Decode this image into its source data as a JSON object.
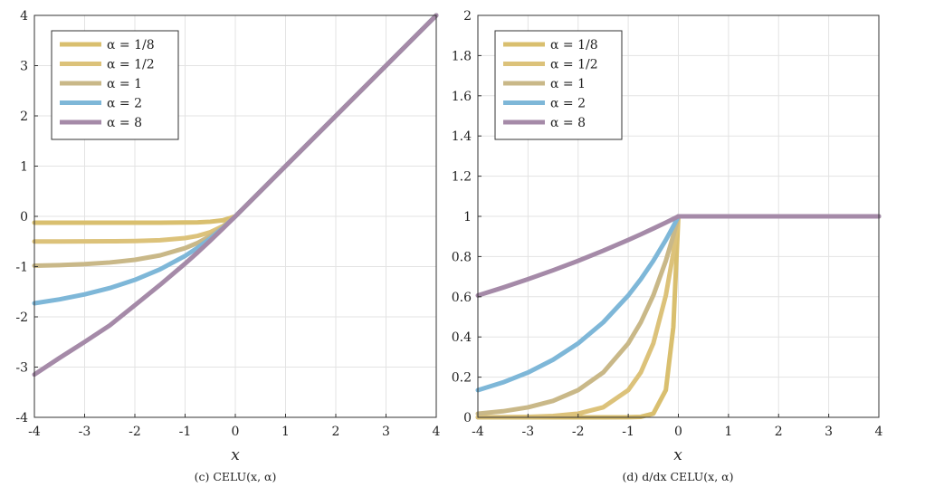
{
  "chart_data": [
    {
      "type": "line",
      "caption": "(c) CELU(x, α)",
      "xlabel": "x",
      "ylabel": "",
      "xlim": [
        -4,
        4
      ],
      "ylim": [
        -4,
        4
      ],
      "xticks": [
        "-4",
        "-3",
        "-2",
        "-1",
        "0",
        "1",
        "2",
        "3",
        "4"
      ],
      "yticks": [
        "-4",
        "-3",
        "-2",
        "-1",
        "0",
        "1",
        "2",
        "3",
        "4"
      ],
      "grid": true,
      "legend_position": "top-left",
      "x": [
        -4,
        -3.5,
        -3,
        -2.5,
        -2,
        -1.5,
        -1,
        -0.75,
        -0.5,
        -0.25,
        0,
        1,
        2,
        3,
        4
      ],
      "series": [
        {
          "name": "α = 1/8",
          "color": "#d9bf6f",
          "values": [
            -0.125,
            -0.125,
            -0.125,
            -0.125,
            -0.125,
            -0.125,
            -0.1227,
            -0.1186,
            -0.1071,
            -0.0795,
            0,
            1,
            2,
            3,
            4
          ]
        },
        {
          "name": "α = 1/2",
          "color": "#dcc27a",
          "values": [
            -0.4998,
            -0.4995,
            -0.4988,
            -0.4966,
            -0.4908,
            -0.4751,
            -0.4323,
            -0.3884,
            -0.3161,
            -0.1967,
            0,
            1,
            2,
            3,
            4
          ]
        },
        {
          "name": "α = 1",
          "color": "#c9b888",
          "values": [
            -0.9817,
            -0.9698,
            -0.9502,
            -0.9179,
            -0.8647,
            -0.7769,
            -0.6321,
            -0.5276,
            -0.3935,
            -0.2212,
            0,
            1,
            2,
            3,
            4
          ]
        },
        {
          "name": "α = 2",
          "color": "#7eb7d8",
          "values": [
            -1.7293,
            -1.6523,
            -1.5537,
            -1.4269,
            -1.2642,
            -1.0553,
            -0.7869,
            -0.6252,
            -0.4424,
            -0.235,
            0,
            1,
            2,
            3,
            4
          ]
        },
        {
          "name": "α = 8",
          "color": "#a58aa8",
          "values": [
            -3.1478,
            -2.8178,
            -2.4989,
            -2.1703,
            -1.7696,
            -1.3647,
            -0.94,
            -0.7182,
            -0.4848,
            -0.2454,
            0,
            1,
            2,
            3,
            4
          ]
        }
      ]
    },
    {
      "type": "line",
      "caption": "(d) d/dx CELU(x, α)",
      "xlabel": "x",
      "ylabel": "",
      "xlim": [
        -4,
        4
      ],
      "ylim": [
        0,
        2
      ],
      "xticks": [
        "-4",
        "-3",
        "-2",
        "-1",
        "0",
        "1",
        "2",
        "3",
        "4"
      ],
      "yticks": [
        "0",
        "0.2",
        "0.4",
        "0.6",
        "0.8",
        "1",
        "1.2",
        "1.4",
        "1.6",
        "1.8",
        "2"
      ],
      "grid": true,
      "legend_position": "top-left",
      "x": [
        -4,
        -3.5,
        -3,
        -2.5,
        -2,
        -1.5,
        -1,
        -0.75,
        -0.5,
        -0.25,
        -0.1,
        0,
        1,
        2,
        3,
        4
      ],
      "series": [
        {
          "name": "α = 1/8",
          "color": "#d9bf6f",
          "values": [
            0,
            0,
            0,
            0,
            0,
            0,
            0.0003,
            0.0025,
            0.0183,
            0.1353,
            0.4493,
            1,
            1,
            1,
            1,
            1
          ]
        },
        {
          "name": "α = 1/2",
          "color": "#dcc27a",
          "values": [
            0.0003,
            0.0009,
            0.0025,
            0.0067,
            0.0183,
            0.0498,
            0.1353,
            0.2231,
            0.3679,
            0.6065,
            0.8187,
            1,
            1,
            1,
            1,
            1
          ]
        },
        {
          "name": "α = 1",
          "color": "#c9b888",
          "values": [
            0.0183,
            0.0302,
            0.0498,
            0.0821,
            0.1353,
            0.2231,
            0.3679,
            0.4724,
            0.6065,
            0.7788,
            0.9048,
            1,
            1,
            1,
            1,
            1
          ]
        },
        {
          "name": "α = 2",
          "color": "#7eb7d8",
          "values": [
            0.1353,
            0.1738,
            0.2231,
            0.2865,
            0.3679,
            0.4724,
            0.6065,
            0.6873,
            0.7788,
            0.8825,
            0.9512,
            1,
            1,
            1,
            1,
            1
          ]
        },
        {
          "name": "α = 8",
          "color": "#a58aa8",
          "values": [
            0.6065,
            0.6456,
            0.6873,
            0.7316,
            0.7788,
            0.829,
            0.8825,
            0.9105,
            0.9394,
            0.9692,
            0.9876,
            1,
            1,
            1,
            1,
            1
          ]
        }
      ]
    }
  ],
  "legend": {
    "labels": [
      "α = 1/8",
      "α = 1/2",
      "α = 1",
      "α = 2",
      "α = 8"
    ]
  }
}
